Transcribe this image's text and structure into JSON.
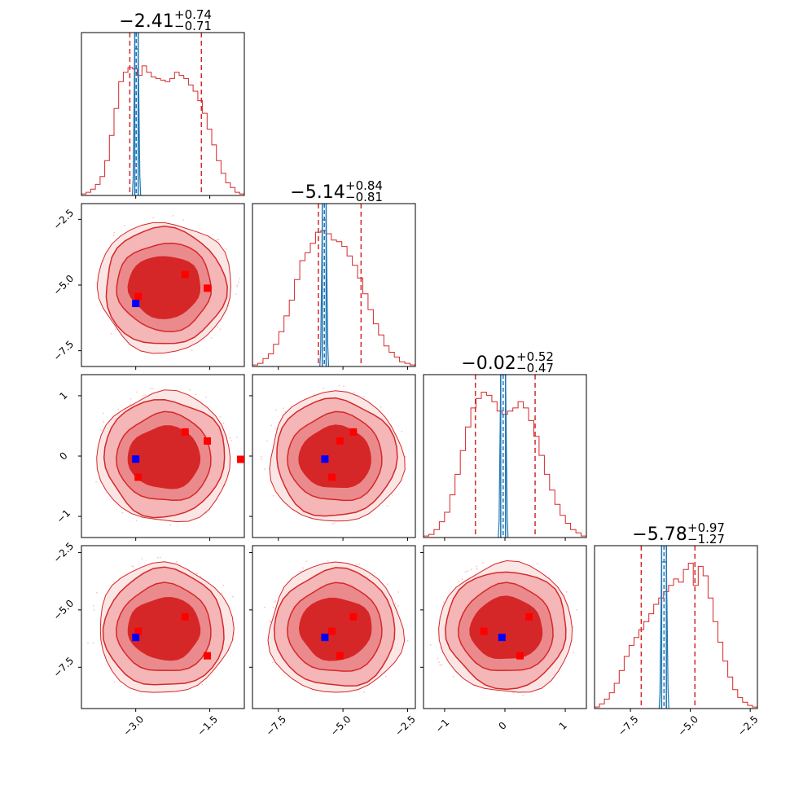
{
  "colors": {
    "posterior": "#d62728",
    "posterior_light": "#f4c7c8",
    "reference": "#1f77b4",
    "marker_posterior": "#ff0000",
    "marker_truth": "#0000ff"
  },
  "chart_data": {
    "type": "corner",
    "n_params": 4,
    "params": [
      {
        "median": "−2.41",
        "plus": "+0.74",
        "minus": "−0.71",
        "range": [
          -4.1,
          -0.8
        ],
        "ticks": [
          -3.0,
          -1.5
        ],
        "tick_labels": [
          "−3.0",
          "−1.5"
        ],
        "quantiles": [
          -3.12,
          -1.67
        ],
        "ref_lines": [
          -3.02,
          -2.99,
          -2.95
        ]
      },
      {
        "median": "−5.14",
        "plus": "+0.84",
        "minus": "−0.81",
        "range": [
          -8.5,
          -2.2
        ],
        "ticks": [
          -7.5,
          -5.0,
          -2.5
        ],
        "tick_labels": [
          "−7.5",
          "−5.0",
          "−2.5"
        ],
        "quantiles": [
          -5.95,
          -4.3
        ],
        "ref_lines": [
          -5.8,
          -5.72,
          -5.65
        ]
      },
      {
        "median": "−0.02",
        "plus": "+0.52",
        "minus": "−0.47",
        "range": [
          -1.35,
          1.35
        ],
        "ticks": [
          -1,
          0,
          1
        ],
        "tick_labels": [
          "−1",
          "0",
          "1"
        ],
        "quantiles": [
          -0.49,
          0.5
        ],
        "ref_lines": [
          -0.07,
          -0.03,
          0.01
        ]
      },
      {
        "median": "−5.78",
        "plus": "+0.97",
        "minus": "−1.27",
        "range": [
          -9.0,
          -2.2
        ],
        "ticks": [
          -7.5,
          -5.0,
          -2.5
        ],
        "tick_labels": [
          "−7.5",
          "−5.0",
          "−2.5"
        ],
        "quantiles": [
          -7.05,
          -4.81
        ],
        "ref_lines": [
          -6.2,
          -6.1,
          -6.0
        ]
      }
    ],
    "y_ticks": {
      "1": {
        "ticks": [
          -7.5,
          -5.0,
          -2.5
        ],
        "tick_labels": [
          "−7.5",
          "−5.0",
          "−2.5"
        ],
        "range": [
          -8.1,
          -1.9
        ]
      },
      "2": {
        "ticks": [
          -1,
          0,
          1
        ],
        "tick_labels": [
          "−1",
          "0",
          "1"
        ],
        "range": [
          -1.35,
          1.35
        ]
      },
      "3": {
        "ticks": [
          -7.5,
          -5.0,
          -2.5
        ],
        "tick_labels": [
          "−7.5",
          "−5.0",
          "−2.5"
        ],
        "range": [
          -9.3,
          -2.2
        ]
      }
    },
    "modes": [
      [
        -2.0,
        -4.6,
        0.4,
        -5.3
      ],
      [
        -1.55,
        -5.12,
        0.25,
        -7.0
      ],
      [
        -2.95,
        -5.43,
        -0.35,
        -5.93
      ]
    ],
    "truth": [
      -3.0,
      -5.7,
      -0.05,
      -6.2
    ],
    "hist_shapes": [
      [
        0.01,
        0.02,
        0.04,
        0.07,
        0.12,
        0.22,
        0.38,
        0.55,
        0.72,
        0.78,
        0.81,
        0.8,
        0.76,
        0.82,
        0.78,
        0.75,
        0.74,
        0.73,
        0.72,
        0.74,
        0.78,
        0.76,
        0.74,
        0.7,
        0.66,
        0.6,
        0.52,
        0.42,
        0.32,
        0.22,
        0.14,
        0.08,
        0.05,
        0.02,
        0.01
      ],
      [
        0.01,
        0.02,
        0.05,
        0.08,
        0.14,
        0.22,
        0.32,
        0.42,
        0.55,
        0.67,
        0.72,
        0.78,
        0.85,
        0.86,
        0.84,
        0.8,
        0.79,
        0.76,
        0.7,
        0.64,
        0.56,
        0.46,
        0.36,
        0.27,
        0.2,
        0.13,
        0.09,
        0.06,
        0.03,
        0.02,
        0.01
      ],
      [
        0.01,
        0.02,
        0.05,
        0.1,
        0.16,
        0.27,
        0.4,
        0.55,
        0.7,
        0.82,
        0.88,
        0.92,
        0.9,
        0.86,
        0.8,
        0.78,
        0.8,
        0.82,
        0.86,
        0.82,
        0.74,
        0.64,
        0.52,
        0.4,
        0.3,
        0.21,
        0.14,
        0.09,
        0.05,
        0.03,
        0.01
      ],
      [
        0.01,
        0.03,
        0.06,
        0.1,
        0.16,
        0.24,
        0.33,
        0.4,
        0.45,
        0.5,
        0.55,
        0.6,
        0.66,
        0.7,
        0.74,
        0.78,
        0.82,
        0.8,
        0.88,
        0.92,
        0.78,
        0.9,
        0.84,
        0.7,
        0.55,
        0.42,
        0.3,
        0.2,
        0.12,
        0.07,
        0.04,
        0.02,
        0.01
      ]
    ]
  }
}
